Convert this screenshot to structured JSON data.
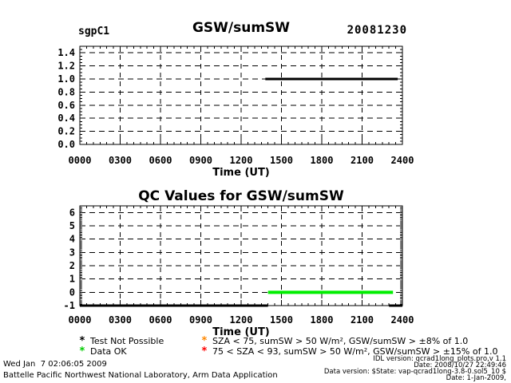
{
  "header": {
    "site": "sgpC1",
    "date": "20081230"
  },
  "chart_data": [
    {
      "type": "line",
      "title": "GSW/sumSW",
      "xlabel": "Time (UT)",
      "ylabel": "",
      "grid": true,
      "xlim": [
        0,
        2400
      ],
      "xtick_values": [
        0,
        300,
        600,
        900,
        1200,
        1500,
        1800,
        2100,
        2400
      ],
      "xtick_labels": [
        "0000",
        "0300",
        "0600",
        "0900",
        "1200",
        "1500",
        "1800",
        "2100",
        "2400"
      ],
      "ylim": [
        0,
        1.5
      ],
      "ytick_values": [
        0.0,
        0.2,
        0.4,
        0.6,
        0.8,
        1.0,
        1.2,
        1.4
      ],
      "ytick_labels": [
        "0.0",
        "0.2",
        "0.4",
        "0.6",
        "0.8",
        "1.0",
        "1.2",
        "1.4"
      ],
      "series": [
        {
          "name": "gsw-sumsw-ratio",
          "color": "#000000",
          "width": 3,
          "points": [
            [
              1380,
              1.0
            ],
            [
              2365,
              1.0
            ]
          ]
        }
      ]
    },
    {
      "type": "line",
      "title": "QC Values for GSW/sumSW",
      "xlabel": "Time (UT)",
      "ylabel": "",
      "grid": true,
      "xlim": [
        0,
        2400
      ],
      "xtick_values": [
        0,
        300,
        600,
        900,
        1200,
        1500,
        1800,
        2100,
        2400
      ],
      "xtick_labels": [
        "0000",
        "0300",
        "0600",
        "0900",
        "1200",
        "1500",
        "1800",
        "2100",
        "2400"
      ],
      "ylim": [
        -1,
        6.5
      ],
      "ytick_values": [
        -1,
        0,
        1,
        2,
        3,
        4,
        5,
        6
      ],
      "ytick_labels": [
        "-1",
        "0",
        "1",
        "2",
        "3",
        "4",
        "5",
        "6"
      ],
      "series": [
        {
          "name": "qc-test-not-possible-am",
          "color": "#000000",
          "width": 3,
          "points": [
            [
              0,
              -1
            ],
            [
              1400,
              -1
            ]
          ]
        },
        {
          "name": "qc-data-ok",
          "color": "#00ee00",
          "width": 4,
          "points": [
            [
              1400,
              0
            ],
            [
              2330,
              0
            ]
          ]
        },
        {
          "name": "qc-test-not-possible-pm",
          "color": "#000000",
          "width": 3,
          "points": [
            [
              2300,
              -1
            ],
            [
              2400,
              -1
            ]
          ]
        }
      ]
    }
  ],
  "legend": [
    {
      "marker": "*",
      "marker_color": "#000000",
      "label": "Test Not Possible"
    },
    {
      "marker": "*",
      "marker_color": "#00cc00",
      "label": "Data OK"
    },
    {
      "marker": "*",
      "marker_color": "#ff8800",
      "label": "SZA < 75, sumSW > 50 W/m², GSW/sumSW > ±8% of 1.0"
    },
    {
      "marker": "*",
      "marker_color": "#ff0000",
      "label": "75 < SZA < 93, sumSW > 50 W/m², GSW/sumSW > ±15% of 1.0"
    }
  ],
  "footer_left": {
    "line1": "Wed Jan  7 02:06:05 2009",
    "line2": "Battelle Pacific Northwest National Laboratory, Arm Data Application"
  },
  "footer_right": {
    "line1": "IDL version: qcrad1long_plots.pro,v 1.1",
    "line2": "Date: 2008/10/27 22:49:46",
    "line3": "Data version: $State: vap-qcrad1long-3.8-0.sol5_10 $",
    "line4": "Date: 1-Jan-2009,"
  }
}
